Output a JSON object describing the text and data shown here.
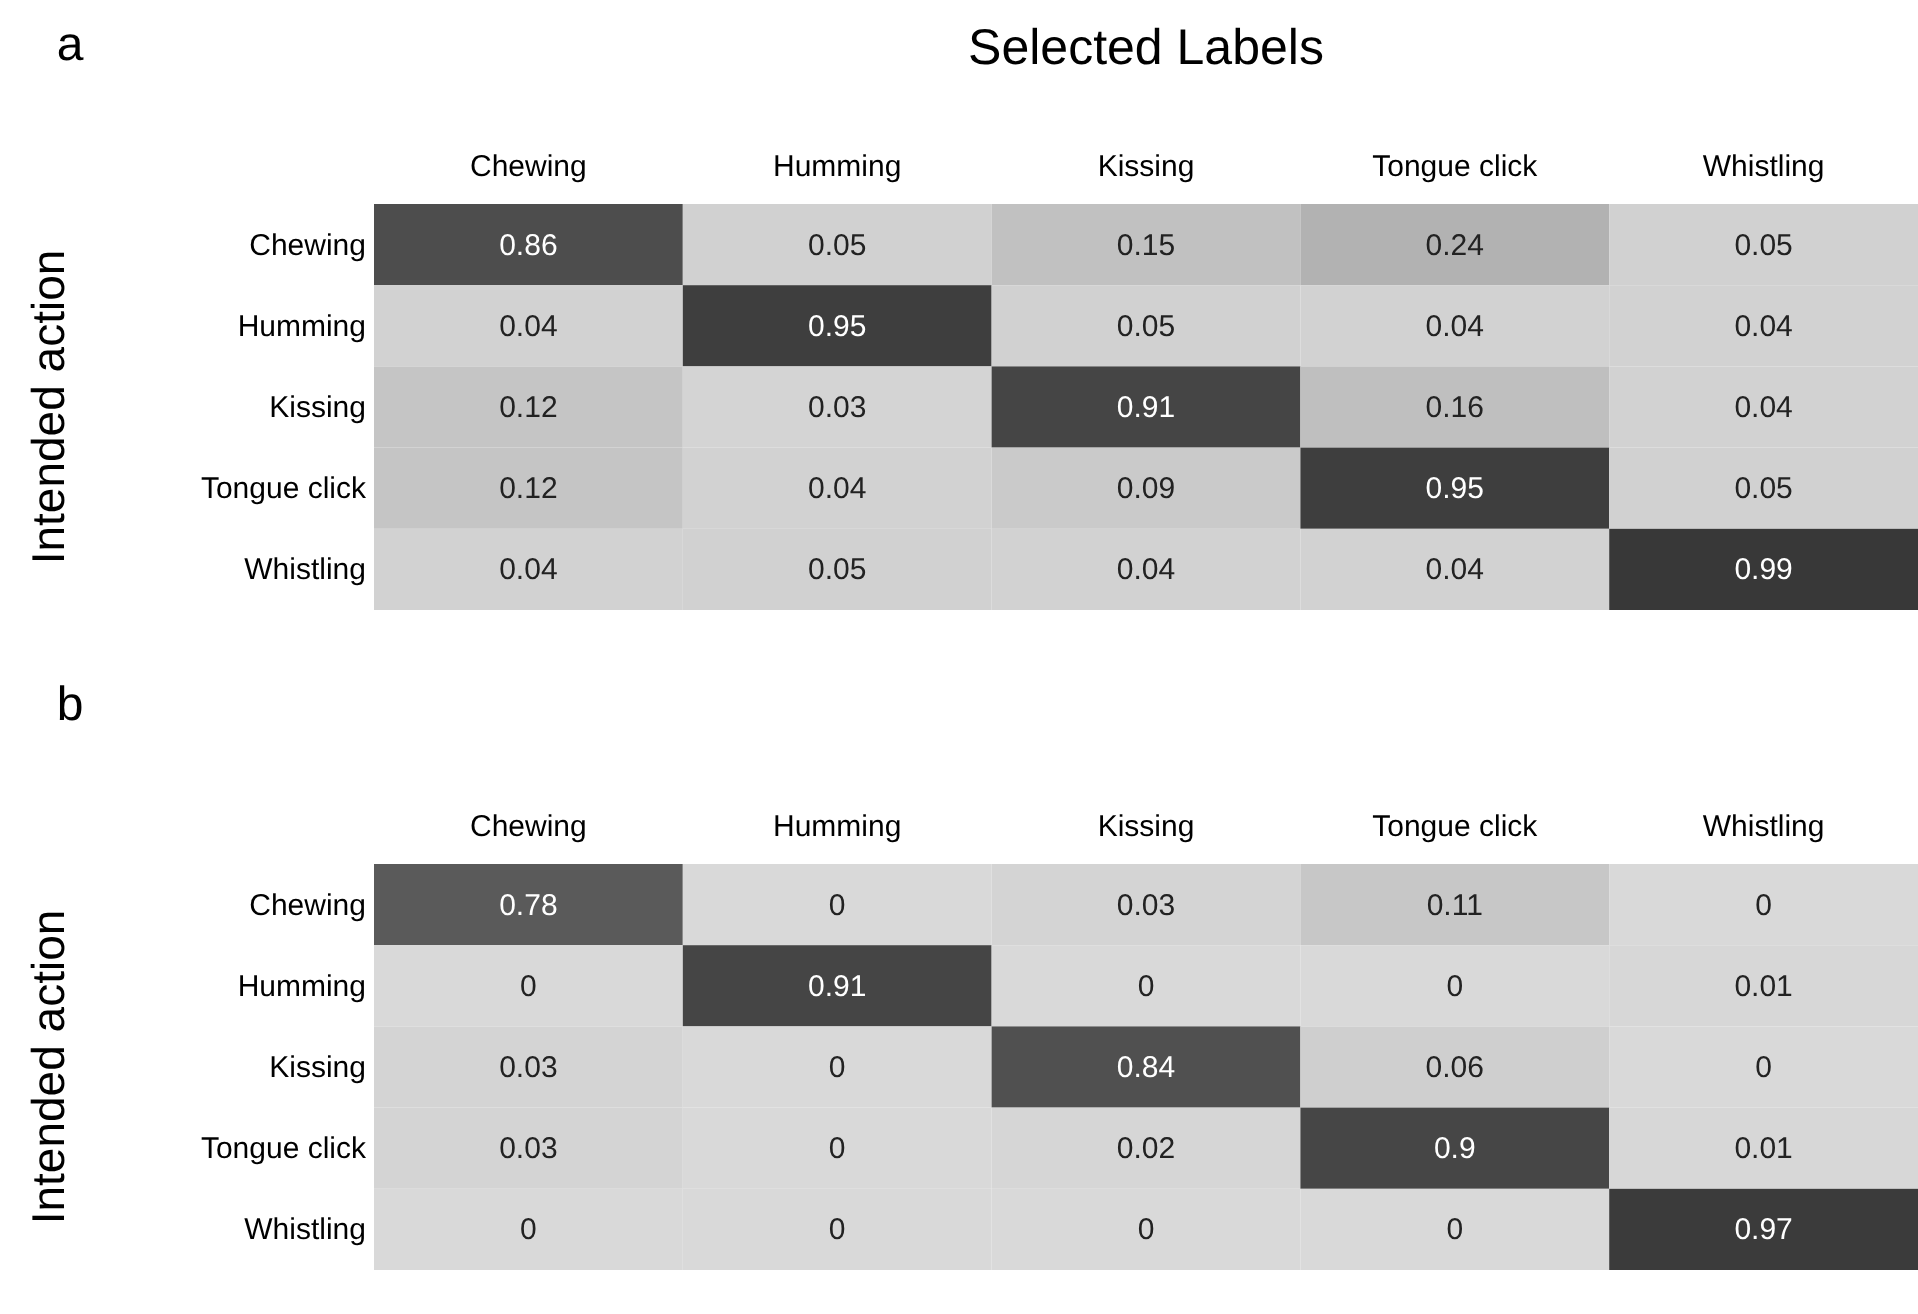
{
  "chart_data": [
    {
      "type": "heatmap",
      "title": "Selected Labels",
      "ylabel": "Intended action",
      "annotations": [
        "a"
      ],
      "data_labels": true,
      "categories": [
        "Chewing",
        "Humming",
        "Kissing",
        "Tongue click",
        "Whistling"
      ],
      "y_categories": [
        "Chewing",
        "Humming",
        "Kissing",
        "Tongue click",
        "Whistling"
      ],
      "cells": [
        [
          0.86,
          0.05,
          0.15,
          0.24,
          0.05
        ],
        [
          0.04,
          0.95,
          0.05,
          0.04,
          0.04
        ],
        [
          0.12,
          0.03,
          0.91,
          0.16,
          0.04
        ],
        [
          0.12,
          0.04,
          0.09,
          0.95,
          0.05
        ],
        [
          0.04,
          0.05,
          0.04,
          0.04,
          0.99
        ]
      ]
    },
    {
      "type": "heatmap",
      "ylabel": "Intended action",
      "annotations": [
        "b"
      ],
      "data_labels": true,
      "categories": [
        "Chewing",
        "Humming",
        "Kissing",
        "Tongue click",
        "Whistling"
      ],
      "y_categories": [
        "Chewing",
        "Humming",
        "Kissing",
        "Tongue click",
        "Whistling"
      ],
      "cells": [
        [
          0.78,
          0,
          0.03,
          0.11,
          0
        ],
        [
          0,
          0.91,
          0,
          0,
          0.01
        ],
        [
          0.03,
          0,
          0.84,
          0.06,
          0
        ],
        [
          0.03,
          0,
          0.02,
          0.9,
          0.01
        ],
        [
          0,
          0,
          0,
          0,
          0.97
        ]
      ]
    }
  ]
}
